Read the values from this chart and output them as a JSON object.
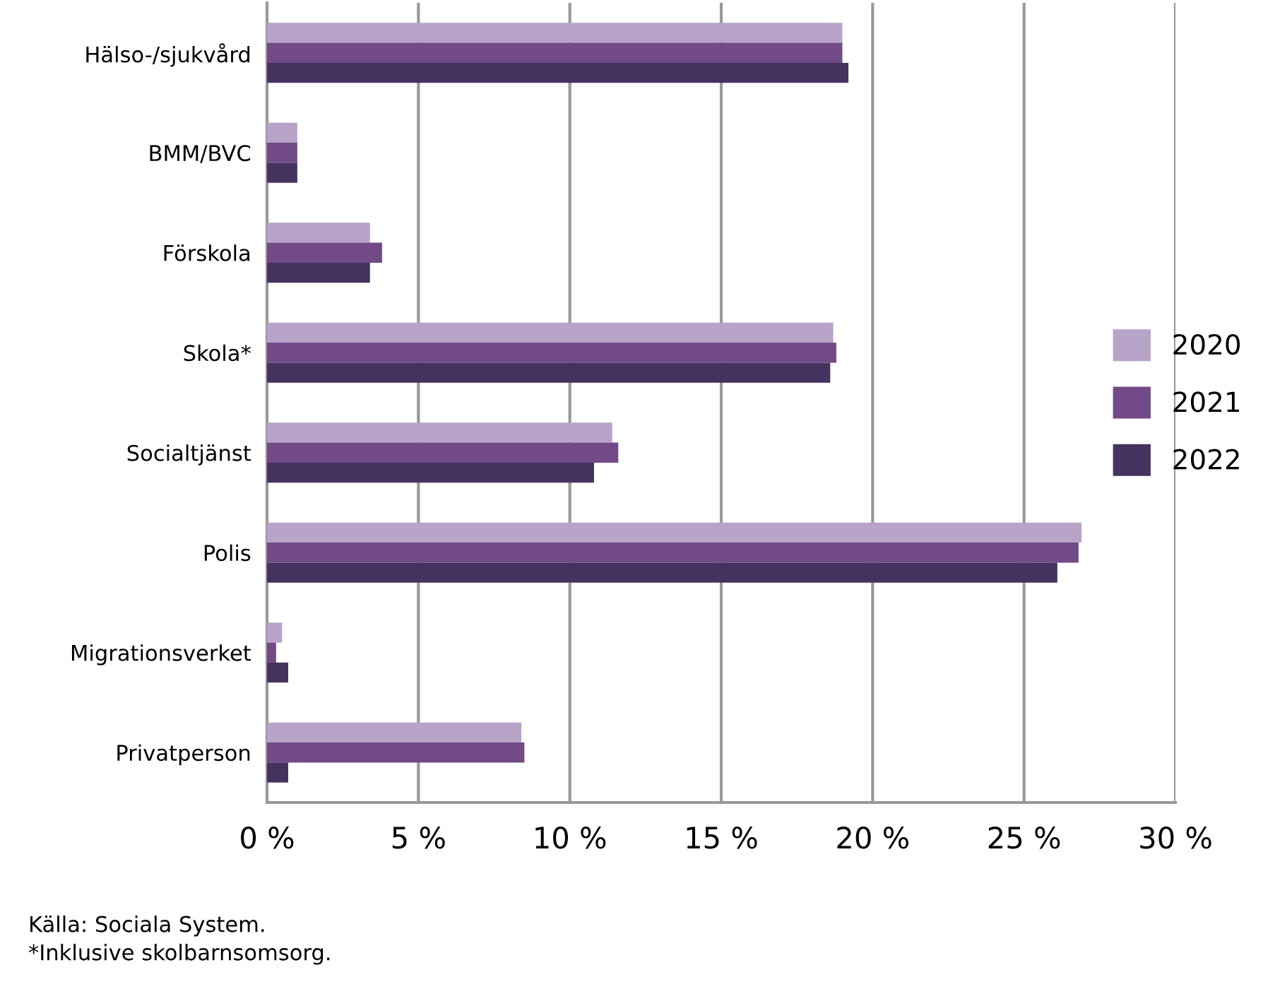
{
  "chart_data": {
    "type": "bar",
    "orientation": "horizontal",
    "categories": [
      "Hälso-/sjukvård",
      "BMM/BVC",
      "Förskola",
      "Skola*",
      "Socialtjänst",
      "Polis",
      "Migrationsverket",
      "Privatperson"
    ],
    "series": [
      {
        "name": "2020",
        "color": "#b8a3c9",
        "values": [
          19.0,
          1.0,
          3.4,
          18.7,
          11.4,
          26.9,
          0.5,
          8.4
        ]
      },
      {
        "name": "2021",
        "color": "#714a87",
        "values": [
          19.0,
          1.0,
          3.8,
          18.8,
          11.6,
          26.8,
          0.3,
          8.5
        ]
      },
      {
        "name": "2022",
        "color": "#44335e",
        "values": [
          19.2,
          1.0,
          3.4,
          18.6,
          10.8,
          26.1,
          0.7,
          0.7
        ]
      }
    ],
    "xlim": [
      0,
      30
    ],
    "xticks": [
      {
        "value": 0,
        "label": "0 %"
      },
      {
        "value": 5,
        "label": "5 %"
      },
      {
        "value": 10,
        "label": "10 %"
      },
      {
        "value": 15,
        "label": "15 %"
      },
      {
        "value": 20,
        "label": "20 %"
      },
      {
        "value": 25,
        "label": "25 %"
      },
      {
        "value": 30,
        "label": "30 %"
      }
    ],
    "grid": "x",
    "legend": "right",
    "annotations": [
      "Källa: Sociala System.",
      "*Inklusive skolbarnsomsorg."
    ]
  }
}
